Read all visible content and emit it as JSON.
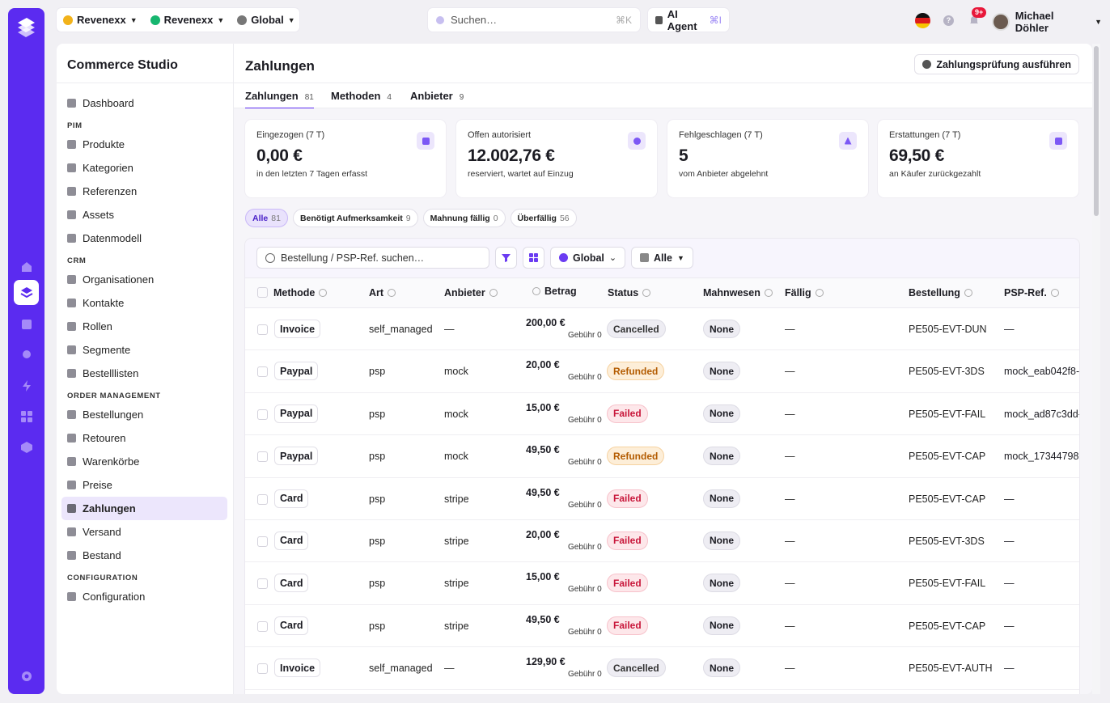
{
  "topbar": {
    "tenant": "Revenexx",
    "org": "Revenexx",
    "scope": "Global",
    "search_placeholder": "Suchen…",
    "search_shortcut": "⌘K",
    "agent_label": "AI Agent",
    "agent_shortcut": "⌘I",
    "notifications_badge": "9+",
    "help_label": "?",
    "user_name": "Michael Döhler"
  },
  "sidebar": {
    "title": "Commerce Studio",
    "top_items": [
      {
        "label": "Dashboard",
        "icon": "dashboard-icon"
      }
    ],
    "sections": [
      {
        "title": "PIM",
        "items": [
          "Produkte",
          "Kategorien",
          "Referenzen",
          "Assets",
          "Datenmodell"
        ]
      },
      {
        "title": "CRM",
        "items": [
          "Organisationen",
          "Kontakte",
          "Rollen",
          "Segmente",
          "Bestelllisten"
        ]
      },
      {
        "title": "ORDER MANAGEMENT",
        "items": [
          "Bestellungen",
          "Retouren",
          "Warenkörbe",
          "Preise",
          "Zahlungen",
          "Versand",
          "Bestand"
        ]
      },
      {
        "title": "CONFIGURATION",
        "items": [
          "Configuration"
        ]
      }
    ],
    "active": "Zahlungen"
  },
  "page": {
    "title": "Zahlungen",
    "action_button": "Zahlungsprüfung ausführen",
    "tabs": [
      {
        "label": "Zahlungen",
        "count": "81"
      },
      {
        "label": "Methoden",
        "count": "4"
      },
      {
        "label": "Anbieter",
        "count": "9"
      }
    ]
  },
  "kpis": [
    {
      "label": "Eingezogen (7 T)",
      "value": "0,00 €",
      "sub": "in den letzten 7 Tagen erfasst"
    },
    {
      "label": "Offen autorisiert",
      "value": "12.002,76 €",
      "sub": "reserviert, wartet auf Einzug"
    },
    {
      "label": "Fehlgeschlagen (7 T)",
      "value": "5",
      "sub": "vom Anbieter abgelehnt"
    },
    {
      "label": "Erstattungen (7 T)",
      "value": "69,50 €",
      "sub": "an Käufer zurückgezahlt"
    }
  ],
  "filters": [
    {
      "label": "Alle",
      "count": "81"
    },
    {
      "label": "Benötigt Aufmerksamkeit",
      "count": "9"
    },
    {
      "label": "Mahnung fällig",
      "count": "0"
    },
    {
      "label": "Überfällig",
      "count": "56"
    }
  ],
  "toolbar": {
    "search_placeholder": "Bestellung / PSP-Ref. suchen…",
    "scope": "Global",
    "view": "Alle"
  },
  "table": {
    "columns": [
      "Methode",
      "Art",
      "Anbieter",
      "Betrag",
      "Status",
      "Mahnwesen",
      "Fällig",
      "Bestellung",
      "PSP-Ref."
    ],
    "fee_prefix": "Gebühr",
    "rows": [
      {
        "method": "Invoice",
        "type": "self_managed",
        "provider": "—",
        "amount": "200,00 €",
        "fee": "0",
        "status": "Cancelled",
        "dunning": "None",
        "due": "—",
        "order": "PE505-EVT-DUN",
        "psp": "—"
      },
      {
        "method": "Paypal",
        "type": "psp",
        "provider": "mock",
        "amount": "20,00 €",
        "fee": "0",
        "status": "Refunded",
        "dunning": "None",
        "due": "—",
        "order": "PE505-EVT-3DS",
        "psp": "mock_eab042f8-"
      },
      {
        "method": "Paypal",
        "type": "psp",
        "provider": "mock",
        "amount": "15,00 €",
        "fee": "0",
        "status": "Failed",
        "dunning": "None",
        "due": "—",
        "order": "PE505-EVT-FAIL",
        "psp": "mock_ad87c3dd-"
      },
      {
        "method": "Paypal",
        "type": "psp",
        "provider": "mock",
        "amount": "49,50 €",
        "fee": "0",
        "status": "Refunded",
        "dunning": "None",
        "due": "—",
        "order": "PE505-EVT-CAP",
        "psp": "mock_17344798-"
      },
      {
        "method": "Card",
        "type": "psp",
        "provider": "stripe",
        "amount": "49,50 €",
        "fee": "0",
        "status": "Failed",
        "dunning": "None",
        "due": "—",
        "order": "PE505-EVT-CAP",
        "psp": "—"
      },
      {
        "method": "Card",
        "type": "psp",
        "provider": "stripe",
        "amount": "20,00 €",
        "fee": "0",
        "status": "Failed",
        "dunning": "None",
        "due": "—",
        "order": "PE505-EVT-3DS",
        "psp": "—"
      },
      {
        "method": "Card",
        "type": "psp",
        "provider": "stripe",
        "amount": "15,00 €",
        "fee": "0",
        "status": "Failed",
        "dunning": "None",
        "due": "—",
        "order": "PE505-EVT-FAIL",
        "psp": "—"
      },
      {
        "method": "Card",
        "type": "psp",
        "provider": "stripe",
        "amount": "49,50 €",
        "fee": "0",
        "status": "Failed",
        "dunning": "None",
        "due": "—",
        "order": "PE505-EVT-CAP",
        "psp": "—"
      },
      {
        "method": "Invoice",
        "type": "self_managed",
        "provider": "—",
        "amount": "129,90 €",
        "fee": "0",
        "status": "Cancelled",
        "dunning": "None",
        "due": "—",
        "order": "PE505-EVT-AUTH",
        "psp": "—"
      }
    ]
  },
  "colors": {
    "accent": "#5b2bf0",
    "failed": "#c8163a",
    "refunded": "#b35b00"
  }
}
